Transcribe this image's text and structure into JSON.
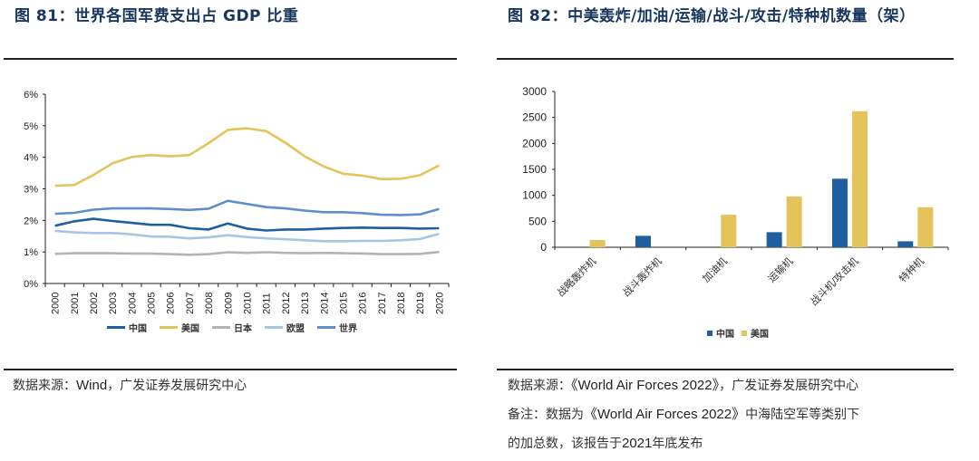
{
  "left": {
    "title": "图 81：世界各国军费支出占 GDP 比重",
    "source_prefix": "数据来源：",
    "source_latin": "Wind",
    "source_suffix": "，广发证券发展研究中心"
  },
  "right": {
    "title": "图 82：中美轰炸/加油/运输/战斗/攻击/特种机数量（架）",
    "source_prefix": "数据来源：",
    "source_latin": "《World Air Forces 2022》",
    "source_suffix": "，广发证券发展研究中心",
    "remark_prefix": "备注：数据为",
    "remark_latin": "《World Air Forces 2022》",
    "remark_mid": "中海陆空军等类别下",
    "remark_line2_a": "的加总数，该报告于",
    "remark_line2_year": "2021",
    "remark_line2_b": "年底发布"
  },
  "chart_data": [
    {
      "type": "line",
      "title": "世界各国军费支出占 GDP 比重",
      "xlabel": "",
      "ylabel": "",
      "ylim": [
        0,
        6
      ],
      "yticks": [
        "0%",
        "1%",
        "2%",
        "3%",
        "4%",
        "5%",
        "6%"
      ],
      "x": [
        "2000",
        "2001",
        "2002",
        "2003",
        "2004",
        "2005",
        "2006",
        "2007",
        "2008",
        "2009",
        "2010",
        "2011",
        "2012",
        "2013",
        "2014",
        "2015",
        "2016",
        "2017",
        "2018",
        "2019",
        "2020"
      ],
      "legend_position": "bottom",
      "grid": false,
      "series": [
        {
          "name": "中国",
          "color": "#1f5fa0",
          "values": [
            1.83,
            1.97,
            2.05,
            1.98,
            1.92,
            1.86,
            1.86,
            1.75,
            1.71,
            1.9,
            1.74,
            1.68,
            1.71,
            1.71,
            1.74,
            1.76,
            1.77,
            1.76,
            1.76,
            1.74,
            1.75
          ]
        },
        {
          "name": "美国",
          "color": "#e3c35a",
          "values": [
            3.1,
            3.12,
            3.44,
            3.81,
            4.01,
            4.07,
            4.03,
            4.07,
            4.45,
            4.87,
            4.92,
            4.83,
            4.46,
            4.03,
            3.71,
            3.48,
            3.42,
            3.31,
            3.32,
            3.43,
            3.74
          ]
        },
        {
          "name": "日本",
          "color": "#b3b3b3",
          "values": [
            0.94,
            0.96,
            0.96,
            0.96,
            0.95,
            0.95,
            0.93,
            0.91,
            0.93,
            0.99,
            0.97,
            0.99,
            0.97,
            0.96,
            0.97,
            0.96,
            0.95,
            0.93,
            0.93,
            0.94,
            1.0
          ]
        },
        {
          "name": "欧盟",
          "color": "#a9c4e4",
          "values": [
            1.67,
            1.62,
            1.6,
            1.6,
            1.56,
            1.49,
            1.48,
            1.43,
            1.46,
            1.53,
            1.47,
            1.43,
            1.4,
            1.37,
            1.34,
            1.34,
            1.35,
            1.35,
            1.37,
            1.41,
            1.57
          ]
        },
        {
          "name": "世界",
          "color": "#5f8fcb",
          "values": [
            2.21,
            2.24,
            2.34,
            2.38,
            2.38,
            2.38,
            2.36,
            2.33,
            2.37,
            2.62,
            2.52,
            2.42,
            2.38,
            2.31,
            2.26,
            2.26,
            2.23,
            2.18,
            2.17,
            2.19,
            2.36
          ]
        }
      ]
    },
    {
      "type": "bar",
      "title": "中美轰炸/加油/运输/战斗/攻击/特种机数量（架）",
      "xlabel": "",
      "ylabel": "",
      "ylim": [
        0,
        3000
      ],
      "yticks": [
        "0",
        "500",
        "1000",
        "1500",
        "2000",
        "2500",
        "3000"
      ],
      "categories": [
        "战略轰炸机",
        "战斗轰炸机",
        "加油机",
        "运输机",
        "战斗机/攻击机",
        "特种机"
      ],
      "legend_position": "bottom",
      "grid": false,
      "series": [
        {
          "name": "中国",
          "color": "#1f5fa0",
          "values": [
            0,
            220,
            0,
            290,
            1320,
            115
          ]
        },
        {
          "name": "美国",
          "color": "#e3c35a",
          "values": [
            140,
            0,
            625,
            980,
            2620,
            770
          ]
        }
      ]
    }
  ]
}
